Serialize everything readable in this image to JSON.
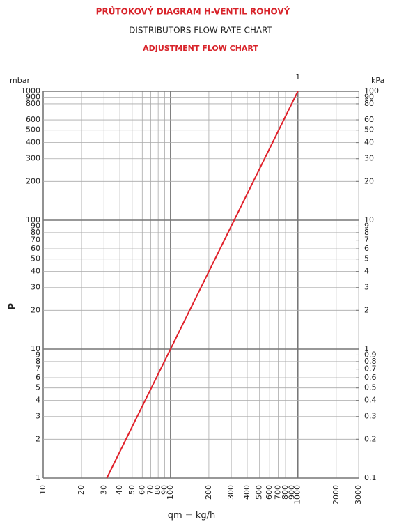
{
  "chart_data": {
    "type": "line",
    "title": "PRŮTOKOVÝ DIAGRAM H-VENTIL ROHOVÝ",
    "subtitle": "DISTRIBUTORS FLOW RATE CHART",
    "subtitle2": "ADJUSTMENT FLOW CHART",
    "y_unit": "mbar",
    "y2_unit": "kPa",
    "y_label": "P",
    "x_label": "qm = kg/h",
    "log_x": true,
    "log_y": true,
    "grid": true,
    "xlim": [
      10,
      3000
    ],
    "ylim": [
      1,
      1000
    ],
    "y2lim": [
      0.1,
      100
    ],
    "xticks": [
      10,
      20,
      30,
      40,
      50,
      60,
      70,
      80,
      90,
      100,
      200,
      300,
      400,
      500,
      600,
      700,
      800,
      900,
      1000,
      2000,
      3000
    ],
    "yticks": [
      1,
      2,
      3,
      4,
      5,
      6,
      7,
      8,
      9,
      10,
      20,
      30,
      40,
      50,
      60,
      70,
      80,
      90,
      100,
      200,
      300,
      400,
      500,
      600,
      800,
      900,
      1000
    ],
    "y2ticks": [
      0.1,
      0.2,
      0.3,
      0.4,
      0.5,
      0.6,
      0.7,
      0.8,
      0.9,
      1,
      2,
      3,
      4,
      5,
      6,
      7,
      8,
      9,
      10,
      20,
      30,
      40,
      50,
      60,
      80,
      90,
      100
    ],
    "series": [
      {
        "name": "1",
        "color": "#e0202a",
        "x": [
          31.6,
          1000
        ],
        "values": [
          1,
          1000
        ]
      }
    ]
  }
}
